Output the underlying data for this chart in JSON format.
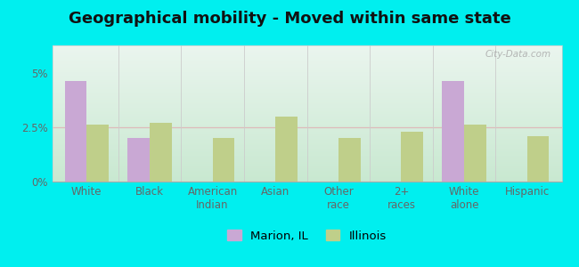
{
  "title": "Geographical mobility - Moved within same state",
  "categories": [
    "White",
    "Black",
    "American\nIndian",
    "Asian",
    "Other\nrace",
    "2+\nraces",
    "White\nalone",
    "Hispanic"
  ],
  "marion_values": [
    4.6,
    2.0,
    0,
    0,
    0,
    0,
    4.6,
    0
  ],
  "illinois_values": [
    2.6,
    2.7,
    2.0,
    3.0,
    2.0,
    2.3,
    2.6,
    2.1
  ],
  "marion_color": "#c9a8d4",
  "illinois_color": "#bfcf8a",
  "background_outer": "#00efef",
  "background_top": "#eaf5ee",
  "background_bottom": "#c8e8d0",
  "ylim": [
    0,
    6.25
  ],
  "ytick_vals": [
    0,
    2.5,
    5.0
  ],
  "ytick_labels": [
    "0%",
    "2.5%",
    "5%"
  ],
  "bar_width": 0.35,
  "legend_marion": "Marion, IL",
  "legend_illinois": "Illinois",
  "watermark": "City-Data.com",
  "title_fontsize": 13,
  "tick_fontsize": 8.5,
  "legend_fontsize": 9.5,
  "gridline_color": "#ddbbbb",
  "separator_color": "#cccccc"
}
